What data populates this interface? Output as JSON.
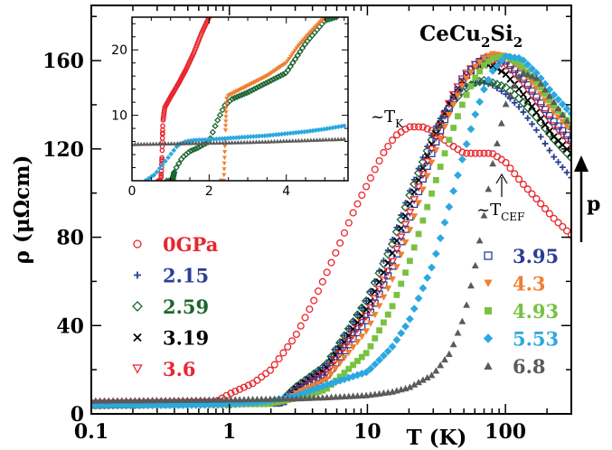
{
  "chart_data": [
    {
      "type": "scatter",
      "title": "CeCu2Si2",
      "xlabel": "T (K)",
      "ylabel": "ρ (μΩcm)",
      "x_scale": "log",
      "xlim": [
        0.1,
        300
      ],
      "ylim": [
        0,
        185
      ],
      "x_ticks": [
        0.1,
        1,
        10,
        100
      ],
      "x_tick_labels": [
        "0.1",
        "1",
        "10",
        "100"
      ],
      "y_ticks": [
        0,
        40,
        80,
        120,
        160
      ],
      "y_tick_labels": [
        "0",
        "40",
        "80",
        "120",
        "160"
      ],
      "legend_left_placement": "lower-left",
      "legend_right_placement": "lower-right",
      "series": [
        {
          "name": "0GPa",
          "color": "#e8262d",
          "marker": "circle-open",
          "x": [
            0.1,
            0.8,
            1.0,
            1.5,
            2.0,
            3.0,
            4.0,
            5.0,
            6.0,
            8.0,
            10,
            13,
            16,
            20,
            25,
            30,
            40,
            50,
            60,
            70,
            80,
            100,
            130,
            170,
            220,
            300
          ],
          "y": [
            5,
            5.5,
            9,
            14,
            20,
            35,
            50,
            63,
            74,
            92,
            104,
            118,
            126,
            130,
            130,
            128,
            122,
            118,
            118,
            118,
            118,
            114,
            105,
            97,
            89,
            81
          ]
        },
        {
          "name": "2.15",
          "color": "#2c3d96",
          "marker": "plus",
          "x": [
            0.1,
            2.3,
            3,
            5,
            10,
            15,
            20,
            30,
            40,
            50,
            60,
            70,
            80,
            100,
            130,
            170,
            220,
            300
          ],
          "y": [
            4,
            5,
            12,
            22,
            52,
            78,
            100,
            128,
            142,
            148,
            150,
            150,
            149,
            145,
            138,
            128,
            117,
            107
          ]
        },
        {
          "name": "2.59",
          "color": "#1d6530",
          "marker": "diamond-open",
          "x": [
            0.1,
            1.0,
            2.4,
            3,
            5,
            10,
            15,
            20,
            30,
            40,
            50,
            60,
            70,
            80,
            100,
            130,
            170,
            220,
            300
          ],
          "y": [
            4,
            4.5,
            6,
            12,
            22,
            52,
            76,
            98,
            126,
            140,
            147,
            150,
            151,
            150,
            148,
            142,
            134,
            125,
            116
          ]
        },
        {
          "name": "3.19",
          "color": "#000000",
          "marker": "cross",
          "x": [
            0.1,
            2.4,
            3,
            5,
            10,
            15,
            20,
            30,
            40,
            50,
            60,
            70,
            80,
            100,
            130,
            170,
            220,
            300
          ],
          "y": [
            4,
            5,
            11,
            20,
            48,
            72,
            94,
            124,
            142,
            152,
            157,
            158,
            158,
            154,
            146,
            136,
            126,
            118
          ]
        },
        {
          "name": "3.6",
          "color": "#e8262d",
          "marker": "triangle-down-open",
          "x": [
            0.1,
            2.4,
            3,
            5,
            10,
            15,
            20,
            30,
            40,
            50,
            60,
            70,
            80,
            100,
            130,
            170,
            220,
            300
          ],
          "y": [
            4,
            5,
            10,
            18,
            45,
            68,
            90,
            122,
            142,
            153,
            158,
            160,
            160,
            158,
            151,
            141,
            131,
            122
          ]
        },
        {
          "name": "3.95",
          "color": "#2c3d96",
          "marker": "square-open",
          "x": [
            0.1,
            2.4,
            3,
            5,
            10,
            15,
            20,
            30,
            40,
            50,
            60,
            70,
            80,
            100,
            130,
            170,
            220,
            300
          ],
          "y": [
            4,
            5,
            10,
            17,
            43,
            66,
            88,
            120,
            140,
            152,
            158,
            161,
            162,
            160,
            153,
            143,
            133,
            124
          ]
        },
        {
          "name": "4.3",
          "color": "#f07f2f",
          "marker": "triangle-down",
          "x": [
            0.1,
            2.4,
            3,
            5,
            10,
            15,
            20,
            30,
            40,
            50,
            60,
            70,
            80,
            100,
            130,
            170,
            220,
            300
          ],
          "y": [
            4,
            5,
            9,
            15,
            38,
            60,
            82,
            116,
            137,
            150,
            157,
            161,
            163,
            162,
            156,
            147,
            137,
            128
          ]
        },
        {
          "name": "4.93",
          "color": "#79c142",
          "marker": "square",
          "x": [
            0.1,
            1.9,
            2.5,
            3,
            5,
            10,
            15,
            20,
            30,
            40,
            50,
            60,
            70,
            80,
            100,
            130,
            170,
            220,
            300
          ],
          "y": [
            4,
            4.5,
            6,
            7,
            11,
            28,
            48,
            68,
            102,
            126,
            142,
            152,
            158,
            161,
            162,
            158,
            150,
            140,
            131
          ]
        },
        {
          "name": "5.53",
          "color": "#2ba8e0",
          "marker": "diamond",
          "x": [
            0.1,
            0.6,
            1.0,
            1.5,
            2.0,
            3,
            5,
            10,
            15,
            20,
            30,
            40,
            50,
            60,
            70,
            80,
            100,
            130,
            170,
            220,
            300
          ],
          "y": [
            4,
            4,
            4.5,
            5,
            6,
            8,
            13,
            19,
            30,
            42,
            68,
            96,
            118,
            135,
            147,
            155,
            162,
            161,
            154,
            145,
            136
          ]
        },
        {
          "name": "6.8",
          "color": "#5a5a5a",
          "marker": "triangle-up",
          "x": [
            0.1,
            1,
            3,
            5,
            10,
            15,
            20,
            30,
            40,
            50,
            60,
            70,
            80,
            100,
            130,
            170,
            220,
            300
          ],
          "y": [
            6,
            6.5,
            7,
            7.5,
            8.5,
            10,
            12,
            18,
            28,
            44,
            66,
            90,
            112,
            140,
            155,
            152,
            142,
            130
          ]
        }
      ],
      "annotations": [
        {
          "text": "~T",
          "subscript": "K",
          "x": 22,
          "y": 142
        },
        {
          "text": "~T",
          "subscript": "CEF",
          "x": 60,
          "y": 100
        },
        {
          "text": "p",
          "kind": "pressure-arrow"
        }
      ]
    },
    {
      "type": "scatter",
      "title": "inset",
      "x_scale": "linear",
      "xlim": [
        0,
        5.6
      ],
      "ylim": [
        0,
        25
      ],
      "x_ticks": [
        0,
        2,
        4
      ],
      "x_tick_labels": [
        "0",
        "2",
        "4"
      ],
      "y_ticks": [
        10,
        20
      ],
      "y_tick_labels": [
        "10",
        "20"
      ],
      "series": [
        {
          "name": "0GPa",
          "color": "#e8262d",
          "x": [
            0.68,
            0.75,
            0.78,
            0.8,
            0.85,
            1.0,
            1.2,
            1.4,
            1.6,
            1.8,
            2.0
          ],
          "y": [
            0,
            0,
            4,
            9,
            11.2,
            12.8,
            14.8,
            17,
            19.5,
            22.5,
            25
          ]
        },
        {
          "name": "2.59",
          "color": "#1d6530",
          "x": [
            0.9,
            1.05,
            1.1,
            1.3,
            1.5,
            1.7,
            2.0,
            2.2,
            2.4,
            2.6,
            3.0,
            3.5,
            4.0,
            4.5,
            5.0,
            5.3
          ],
          "y": [
            0,
            0,
            1.5,
            3.5,
            4.5,
            5,
            6,
            9,
            11.5,
            12.5,
            13.5,
            15,
            16.5,
            21,
            24.5,
            25
          ]
        },
        {
          "name": "4.3",
          "color": "#f07f2f",
          "x": [
            2.3,
            2.38,
            2.42,
            2.45,
            2.5,
            3.0,
            3.5,
            4.0,
            4.3,
            4.6,
            5.0
          ],
          "y": [
            0,
            0,
            7,
            12.5,
            13,
            14.5,
            16,
            18,
            20.5,
            22.5,
            25
          ]
        },
        {
          "name": "5.53",
          "color": "#2ba8e0",
          "x": [
            0.35,
            0.6,
            0.8,
            1.0,
            1.2,
            1.4,
            1.6,
            2.0,
            2.5,
            3.0,
            3.5,
            4.0,
            4.5,
            5.0,
            5.5
          ],
          "y": [
            0,
            1,
            2.5,
            4,
            5.5,
            6,
            6.2,
            6.3,
            6.5,
            6.7,
            6.9,
            7.2,
            7.5,
            7.9,
            8.4
          ]
        },
        {
          "name": "6.8",
          "color": "#5a5a5a",
          "x": [
            0,
            1,
            2,
            3,
            4,
            5,
            5.5
          ],
          "y": [
            5.6,
            5.7,
            5.8,
            5.9,
            6.1,
            6.3,
            6.4
          ]
        }
      ]
    }
  ],
  "labels": {
    "title_main": "CeCu",
    "title_sub1": "2",
    "title_mid": "Si",
    "title_sub2": "2",
    "ylabel": "ρ (μΩcm)",
    "xlabel": "T (K)",
    "tk_main": "~T",
    "tk_sub": "K",
    "tcef_main": "~T",
    "tcef_sub": "CEF",
    "pressure_label": "p"
  }
}
